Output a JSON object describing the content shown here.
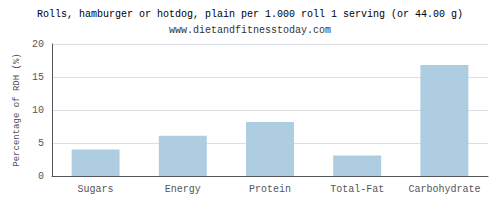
{
  "chart_data": {
    "type": "bar",
    "title": "Rolls, hamburger or hotdog, plain per 1.000 roll 1 serving (or 44.00 g)",
    "subtitle": "www.dietandfitnesstoday.com",
    "ylabel": "Percentage of RDH (%)",
    "categories": [
      "Sugars",
      "Energy",
      "Protein",
      "Total-Fat",
      "Carbohydrate"
    ],
    "values": [
      4.0,
      6.1,
      8.2,
      3.1,
      16.8
    ],
    "color": "#aecde0",
    "ylim": [
      0,
      20
    ],
    "yticks": [
      0,
      5,
      10,
      15,
      20
    ],
    "grid": true
  }
}
